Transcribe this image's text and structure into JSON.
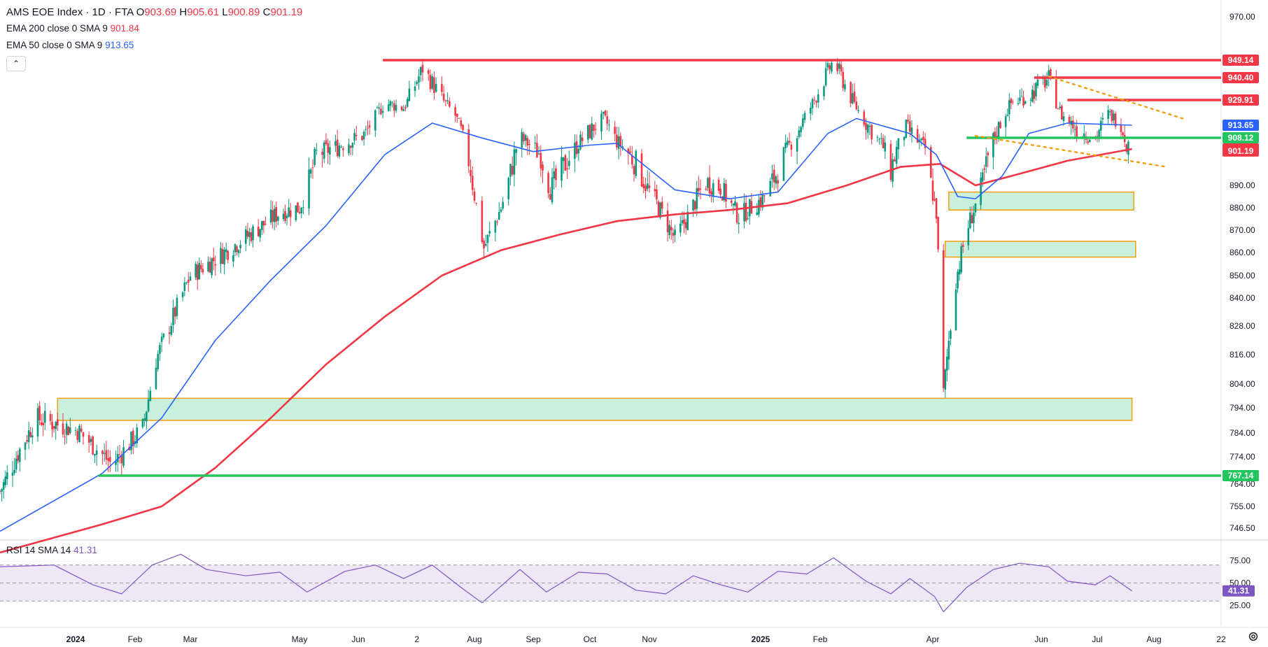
{
  "legend": {
    "symbol": "AMS EOE Index · 1D · FTA",
    "open_label": "O",
    "open": "903.69",
    "high_label": "H",
    "high": "905.61",
    "low_label": "L",
    "low": "900.89",
    "close_label": "C",
    "close": "901.19",
    "ema200_label": "EMA 200 close 0 SMA 9",
    "ema200_value": "901.84",
    "ema50_label": "EMA 50 close 0 SMA 9",
    "ema50_value": "913.65",
    "rsi_label": "RSI 14 SMA 14",
    "rsi_value": "41.31"
  },
  "colors": {
    "up": "#089981",
    "down": "#f23645",
    "ema200": "#f23645",
    "ema50": "#2962ff",
    "hline_red": "#f23645",
    "hline_green": "#22c55e",
    "zone_fill": "#c8f0dc",
    "zone_border": "#f59e0b",
    "trend": "#f59e0b",
    "rsi_line": "#7e57c2",
    "rsi_band": "#ede7f6"
  },
  "chart_data": {
    "type": "candlestick",
    "y_axis_ticks": [
      "970.00",
      "890.00",
      "880.00",
      "870.00",
      "860.00",
      "850.00",
      "840.00",
      "828.00",
      "816.00",
      "804.00",
      "794.00",
      "784.00",
      "774.00",
      "764.00",
      "755.00",
      "746.50"
    ],
    "x_axis_ticks": [
      "2024",
      "Feb",
      "Mar",
      "May",
      "Jun",
      "2",
      "Aug",
      "Sep",
      "Oct",
      "Nov",
      "2025",
      "Feb",
      "Apr",
      "Jun",
      "Jul",
      "Aug",
      "22"
    ],
    "x_axis_ticks_bold": [
      "2024",
      "2025"
    ],
    "price_tags": [
      {
        "value": "949.14",
        "color": "#f23645"
      },
      {
        "value": "940.40",
        "color": "#f23645"
      },
      {
        "value": "929.91",
        "color": "#f23645"
      },
      {
        "value": "913.65",
        "color": "#2962ff"
      },
      {
        "value": "908.12",
        "color": "#22c55e"
      },
      {
        "value": "901.84",
        "color": "#f23645"
      },
      {
        "value": "901.19",
        "color": "#f23645"
      },
      {
        "value": "767.14",
        "color": "#22c55e"
      }
    ],
    "horizontal_levels": [
      {
        "price": 949.14,
        "color": "red",
        "from_date": "2024-06-14"
      },
      {
        "price": 940.4,
        "color": "red",
        "from_date": "2025-05-28"
      },
      {
        "price": 929.91,
        "color": "red",
        "from_date": "2025-06-15"
      },
      {
        "price": 908.12,
        "color": "green",
        "from_date": "2025-04-20"
      },
      {
        "price": 767.14,
        "color": "green",
        "from_date": "2024-01-13"
      }
    ],
    "zones": [
      {
        "from_date": "2023-12-22",
        "to_date": "2025-07-20",
        "low": 789,
        "high": 798
      },
      {
        "from_date": "2025-04-10",
        "to_date": "2025-07-21",
        "low": 879,
        "high": 887
      },
      {
        "from_date": "2025-04-08",
        "to_date": "2025-07-22",
        "low": 858,
        "high": 865
      }
    ],
    "trend_lines": [
      {
        "from": [
          "2025-06-05",
          941
        ],
        "to": [
          "2025-08-10",
          918
        ]
      },
      {
        "from": [
          "2025-04-25",
          909
        ],
        "to": [
          "2025-08-05",
          896
        ]
      }
    ],
    "price_path": [
      [
        "2023-11-20",
        761
      ],
      [
        "2023-12-10",
        790
      ],
      [
        "2024-01-02",
        785
      ],
      [
        "2024-01-20",
        771
      ],
      [
        "2024-02-05",
        786
      ],
      [
        "2024-02-12",
        814
      ],
      [
        "2024-03-01",
        850
      ],
      [
        "2024-03-20",
        860
      ],
      [
        "2024-04-10",
        872
      ],
      [
        "2024-04-20",
        878
      ],
      [
        "2024-05-01",
        880
      ],
      [
        "2024-05-10",
        900
      ],
      [
        "2024-05-25",
        905
      ],
      [
        "2024-06-05",
        910
      ],
      [
        "2024-06-15",
        928
      ],
      [
        "2024-06-25",
        925
      ],
      [
        "2024-07-05",
        945
      ],
      [
        "2024-07-12",
        935
      ],
      [
        "2024-07-22",
        920
      ],
      [
        "2024-07-30",
        895
      ],
      [
        "2024-08-06",
        862
      ],
      [
        "2024-08-15",
        880
      ],
      [
        "2024-08-25",
        908
      ],
      [
        "2024-09-05",
        900
      ],
      [
        "2024-09-10",
        888
      ],
      [
        "2024-09-25",
        905
      ],
      [
        "2024-10-08",
        918
      ],
      [
        "2024-10-15",
        906
      ],
      [
        "2024-10-25",
        897
      ],
      [
        "2024-11-05",
        882
      ],
      [
        "2024-11-15",
        866
      ],
      [
        "2024-11-22",
        876
      ],
      [
        "2024-12-01",
        891
      ],
      [
        "2024-12-10",
        889
      ],
      [
        "2024-12-20",
        876
      ],
      [
        "2025-01-02",
        884
      ],
      [
        "2025-01-10",
        895
      ],
      [
        "2025-01-20",
        910
      ],
      [
        "2025-01-30",
        932
      ],
      [
        "2025-02-08",
        949
      ],
      [
        "2025-02-15",
        935
      ],
      [
        "2025-02-25",
        915
      ],
      [
        "2025-03-05",
        905
      ],
      [
        "2025-03-10",
        895
      ],
      [
        "2025-03-18",
        913
      ],
      [
        "2025-03-28",
        902
      ],
      [
        "2025-04-03",
        878
      ],
      [
        "2025-04-07",
        800
      ],
      [
        "2025-04-10",
        822
      ],
      [
        "2025-04-14",
        848
      ],
      [
        "2025-04-20",
        870
      ],
      [
        "2025-04-28",
        888
      ],
      [
        "2025-05-05",
        907
      ],
      [
        "2025-05-15",
        928
      ],
      [
        "2025-05-25",
        932
      ],
      [
        "2025-06-05",
        940
      ],
      [
        "2025-06-12",
        920
      ],
      [
        "2025-06-20",
        912
      ],
      [
        "2025-06-30",
        908
      ],
      [
        "2025-07-07",
        921
      ],
      [
        "2025-07-14",
        915
      ],
      [
        "2025-07-17",
        905
      ],
      [
        "2025-07-20",
        901.19
      ]
    ],
    "ema50_path": [
      [
        "2023-11-20",
        745
      ],
      [
        "2024-01-15",
        768
      ],
      [
        "2024-02-15",
        790
      ],
      [
        "2024-03-15",
        822
      ],
      [
        "2024-04-15",
        848
      ],
      [
        "2024-05-15",
        872
      ],
      [
        "2024-06-15",
        900
      ],
      [
        "2024-07-10",
        915
      ],
      [
        "2024-08-05",
        908
      ],
      [
        "2024-09-01",
        901
      ],
      [
        "2024-10-01",
        904
      ],
      [
        "2024-10-15",
        905
      ],
      [
        "2024-11-15",
        888
      ],
      [
        "2024-12-15",
        884
      ],
      [
        "2025-01-10",
        887
      ],
      [
        "2025-02-05",
        910
      ],
      [
        "2025-02-20",
        918
      ],
      [
        "2025-03-20",
        910
      ],
      [
        "2025-04-03",
        900
      ],
      [
        "2025-04-15",
        885
      ],
      [
        "2025-04-25",
        884
      ],
      [
        "2025-05-10",
        893
      ],
      [
        "2025-05-25",
        910
      ],
      [
        "2025-06-15",
        915
      ],
      [
        "2025-07-10",
        914
      ],
      [
        "2025-07-20",
        913.65
      ]
    ],
    "ema200_path": [
      [
        "2023-11-20",
        735
      ],
      [
        "2024-01-15",
        748
      ],
      [
        "2024-02-15",
        755
      ],
      [
        "2024-03-15",
        770
      ],
      [
        "2024-04-15",
        790
      ],
      [
        "2024-05-15",
        812
      ],
      [
        "2024-06-15",
        832
      ],
      [
        "2024-07-15",
        850
      ],
      [
        "2024-08-15",
        861
      ],
      [
        "2024-09-15",
        868
      ],
      [
        "2024-10-15",
        874
      ],
      [
        "2024-11-15",
        877
      ],
      [
        "2024-12-15",
        879
      ],
      [
        "2025-01-15",
        882
      ],
      [
        "2025-02-15",
        890
      ],
      [
        "2025-03-15",
        896
      ],
      [
        "2025-04-05",
        897
      ],
      [
        "2025-04-25",
        890
      ],
      [
        "2025-05-15",
        893
      ],
      [
        "2025-06-15",
        898
      ],
      [
        "2025-07-20",
        901.84
      ]
    ],
    "rsi": {
      "ticks": [
        "75.00",
        "50.00",
        "25.00"
      ],
      "current": "41.31",
      "upper": 70,
      "mid": 50,
      "lower": 30,
      "path": [
        [
          "2023-11-20",
          68
        ],
        [
          "2023-12-20",
          70
        ],
        [
          "2024-01-10",
          48
        ],
        [
          "2024-01-25",
          38
        ],
        [
          "2024-02-10",
          70
        ],
        [
          "2024-02-25",
          82
        ],
        [
          "2024-03-10",
          65
        ],
        [
          "2024-04-01",
          58
        ],
        [
          "2024-04-20",
          62
        ],
        [
          "2024-05-05",
          40
        ],
        [
          "2024-05-25",
          63
        ],
        [
          "2024-06-10",
          70
        ],
        [
          "2024-06-25",
          55
        ],
        [
          "2024-07-10",
          70
        ],
        [
          "2024-07-25",
          45
        ],
        [
          "2024-08-05",
          28
        ],
        [
          "2024-08-25",
          65
        ],
        [
          "2024-09-08",
          40
        ],
        [
          "2024-09-25",
          62
        ],
        [
          "2024-10-10",
          60
        ],
        [
          "2024-10-25",
          42
        ],
        [
          "2024-11-10",
          38
        ],
        [
          "2024-11-25",
          58
        ],
        [
          "2024-12-10",
          48
        ],
        [
          "2024-12-25",
          40
        ],
        [
          "2025-01-10",
          63
        ],
        [
          "2025-01-25",
          60
        ],
        [
          "2025-02-08",
          78
        ],
        [
          "2025-02-25",
          52
        ],
        [
          "2025-03-10",
          38
        ],
        [
          "2025-03-20",
          55
        ],
        [
          "2025-04-02",
          35
        ],
        [
          "2025-04-07",
          18
        ],
        [
          "2025-04-20",
          45
        ],
        [
          "2025-05-05",
          65
        ],
        [
          "2025-05-20",
          72
        ],
        [
          "2025-06-05",
          68
        ],
        [
          "2025-06-15",
          52
        ],
        [
          "2025-06-30",
          48
        ],
        [
          "2025-07-08",
          58
        ],
        [
          "2025-07-20",
          41.31
        ]
      ]
    }
  }
}
